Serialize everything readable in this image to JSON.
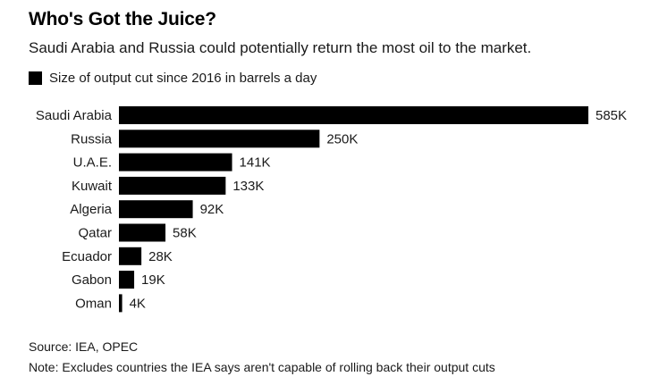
{
  "chart_data": {
    "type": "bar",
    "orientation": "horizontal",
    "title": "Who's Got the Juice?",
    "subtitle": "Saudi Arabia and Russia could potentially return the most oil to the market.",
    "legend": [
      {
        "name": "Size of output cut since 2016 in barrels a day",
        "color": "#000000"
      }
    ],
    "legend_position": "top-left",
    "categories": [
      "Saudi Arabia",
      "Russia",
      "U.A.E.",
      "Kuwait",
      "Algeria",
      "Qatar",
      "Ecuador",
      "Gabon",
      "Oman"
    ],
    "series": [
      {
        "name": "Size of output cut since 2016 in barrels a day",
        "values": [
          585,
          250,
          141,
          133,
          92,
          58,
          28,
          19,
          4
        ],
        "labels": [
          "585K",
          "250K",
          "141K",
          "133K",
          "92K",
          "58K",
          "28K",
          "19K",
          "4K"
        ]
      }
    ],
    "xlim": [
      0,
      585
    ],
    "grid": false,
    "source": "Source: IEA, OPEC",
    "note": "Note: Excludes countries the IEA says aren't capable of rolling back their output cuts"
  }
}
